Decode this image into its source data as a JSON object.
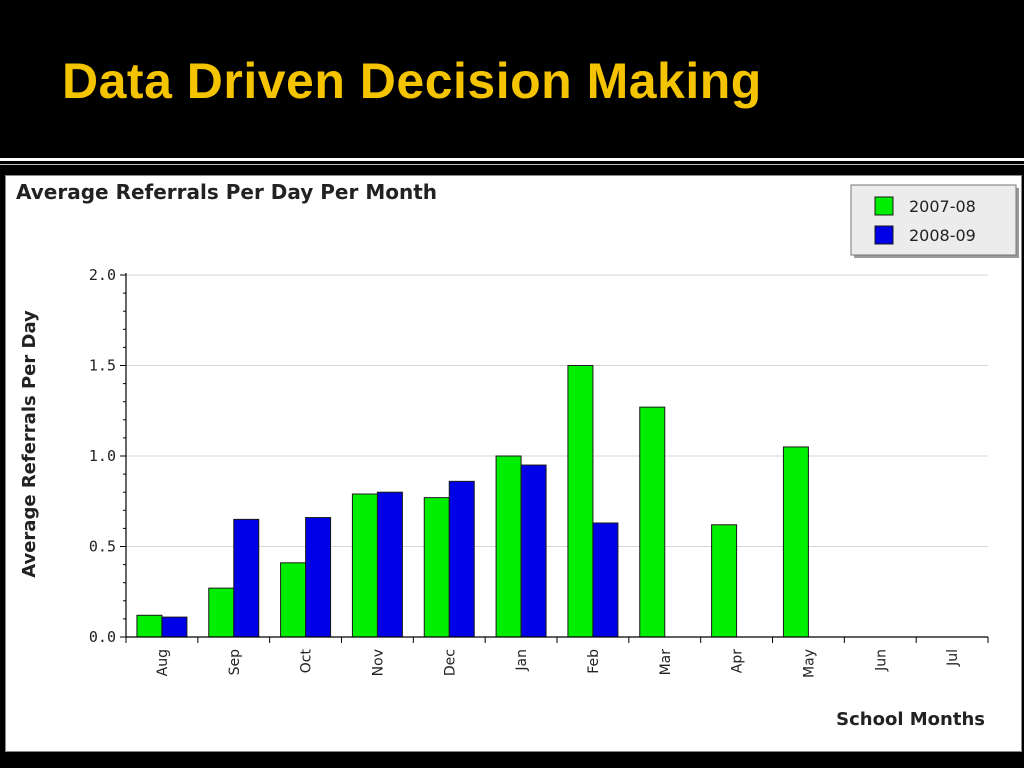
{
  "slide": {
    "title": "Data Driven Decision Making"
  },
  "colors": {
    "title": "#f5c400",
    "background": "#000000",
    "series_2007_08": "#00ee00",
    "series_2008_09": "#0000e6"
  },
  "chart_data": {
    "type": "bar",
    "title": "Average Referrals Per Day Per Month",
    "xlabel": "School Months",
    "ylabel": "Average Referrals Per Day",
    "categories": [
      "Aug",
      "Sep",
      "Oct",
      "Nov",
      "Dec",
      "Jan",
      "Feb",
      "Mar",
      "Apr",
      "May",
      "Jun",
      "Jul"
    ],
    "ylim": [
      0,
      2.0
    ],
    "yticks": [
      "0.0",
      "0.5",
      "1.0",
      "1.5",
      "2.0"
    ],
    "grid": true,
    "legend_position": "top-right",
    "series": [
      {
        "name": "2007-08",
        "color": "#00ee00",
        "values": [
          0.12,
          0.27,
          0.41,
          0.79,
          0.77,
          1.0,
          1.5,
          1.27,
          0.62,
          1.05,
          null,
          null
        ]
      },
      {
        "name": "2008-09",
        "color": "#0000e6",
        "values": [
          0.11,
          0.65,
          0.66,
          0.8,
          0.86,
          0.95,
          0.63,
          null,
          null,
          null,
          null,
          null
        ]
      }
    ]
  }
}
